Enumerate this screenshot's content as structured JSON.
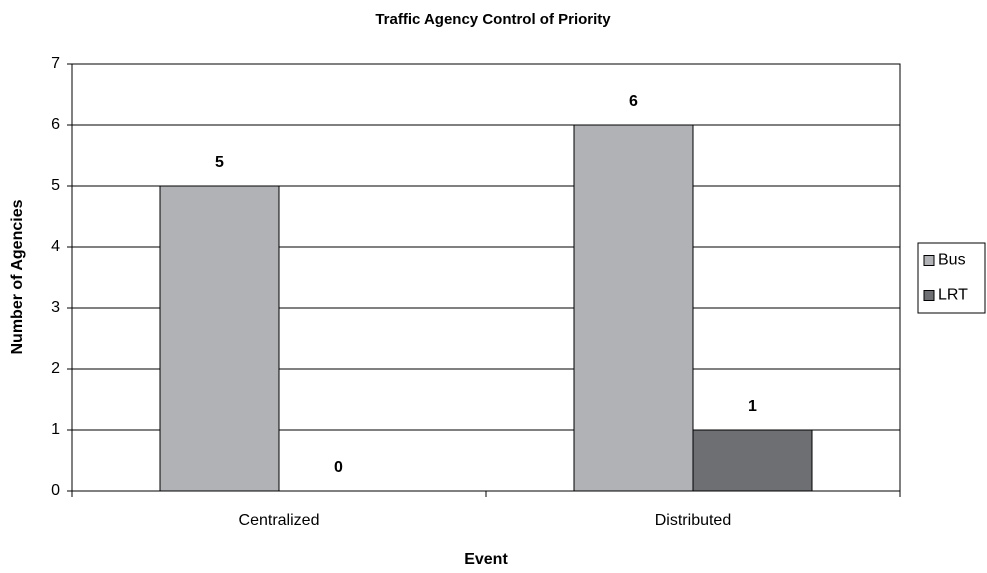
{
  "chart_data": {
    "type": "bar",
    "title": "Traffic Agency Control of Priority",
    "x_label": "Event",
    "y_label": "Number of Agencies",
    "categories": [
      "Centralized",
      "Distributed"
    ],
    "series": [
      {
        "name": "Bus",
        "color": "#b1b2b5",
        "values": [
          5,
          6
        ]
      },
      {
        "name": "LRT",
        "color": "#6e6f72",
        "values": [
          0,
          1
        ]
      }
    ],
    "ylim": [
      0,
      7
    ],
    "yticks": [
      0,
      1,
      2,
      3,
      4,
      5,
      6,
      7
    ],
    "grid": true,
    "legend": "right",
    "data_labels": true
  }
}
